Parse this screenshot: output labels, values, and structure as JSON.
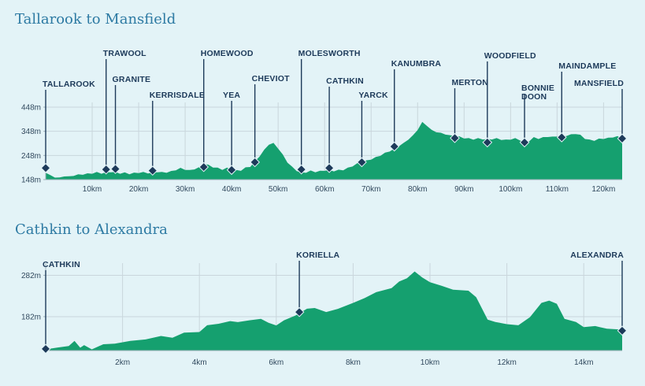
{
  "colors": {
    "background": "#e3f3f7",
    "area": "#15a06f",
    "title": "#2d7aa3",
    "label": "#1d3a5a"
  },
  "chart_data": [
    {
      "type": "area",
      "title": "Tallarook to Mansfield",
      "xlabel": "",
      "ylabel": "",
      "x_unit": "km",
      "y_unit": "m",
      "xlim": [
        0,
        124
      ],
      "ylim": [
        148,
        448
      ],
      "x_ticks": [
        10,
        20,
        30,
        40,
        50,
        60,
        70,
        80,
        90,
        100,
        110,
        120
      ],
      "x_tick_labels": [
        "10km",
        "20km",
        "30km",
        "40km",
        "50km",
        "60km",
        "70km",
        "80km",
        "90km",
        "100km",
        "110km",
        "120km"
      ],
      "y_ticks": [
        148,
        248,
        348,
        448
      ],
      "y_tick_labels": [
        "148m",
        "248m",
        "348m",
        "448m"
      ],
      "grid": true,
      "elevation": {
        "x": [
          0,
          1,
          2,
          3,
          4,
          5,
          6,
          7,
          8,
          9,
          10,
          11,
          12,
          13,
          14,
          15,
          16,
          17,
          18,
          19,
          20,
          21,
          22,
          23,
          24,
          25,
          26,
          27,
          28,
          29,
          30,
          31,
          32,
          33,
          34,
          35,
          36,
          37,
          38,
          39,
          40,
          41,
          42,
          43,
          44,
          45,
          46,
          47,
          48,
          49,
          50,
          51,
          52,
          53,
          54,
          55,
          56,
          57,
          58,
          59,
          60,
          61,
          62,
          63,
          64,
          65,
          66,
          67,
          68,
          69,
          70,
          71,
          72,
          73,
          74,
          75,
          76,
          77,
          78,
          79,
          80,
          81,
          82,
          83,
          84,
          85,
          86,
          87,
          88,
          89,
          90,
          91,
          92,
          93,
          94,
          95,
          96,
          97,
          98,
          99,
          100,
          101,
          102,
          103,
          104,
          105,
          106,
          107,
          108,
          109,
          110,
          111,
          112,
          113,
          114,
          115,
          116,
          117,
          118,
          119,
          120,
          121,
          122,
          123,
          124
        ],
        "y": [
          178,
          165,
          158,
          155,
          163,
          160,
          165,
          168,
          170,
          172,
          174,
          178,
          174,
          177,
          180,
          178,
          174,
          176,
          172,
          175,
          177,
          178,
          175,
          176,
          180,
          178,
          178,
          182,
          188,
          195,
          190,
          186,
          192,
          198,
          214,
          208,
          200,
          196,
          190,
          196,
          190,
          186,
          186,
          197,
          202,
          222,
          245,
          270,
          294,
          298,
          278,
          250,
          220,
          200,
          185,
          176,
          178,
          184,
          180,
          183,
          186,
          186,
          184,
          187,
          188,
          196,
          204,
          214,
          220,
          226,
          232,
          240,
          248,
          258,
          266,
          275,
          288,
          298,
          315,
          330,
          355,
          385,
          372,
          352,
          346,
          340,
          336,
          330,
          330,
          325,
          320,
          318,
          315,
          318,
          316,
          314,
          316,
          318,
          314,
          312,
          315,
          318,
          312,
          300,
          308,
          322,
          318,
          322,
          326,
          324,
          328,
          326,
          330,
          334,
          338,
          332,
          318,
          312,
          310,
          316,
          318,
          320,
          324,
          326,
          318
        ],
        "min_y": 148
      },
      "locations": [
        {
          "name": "TALLAROOK",
          "km": 0,
          "elev": 196
        },
        {
          "name": "TRAWOOL",
          "km": 13,
          "elev": 190
        },
        {
          "name": "GRANITE",
          "km": 15,
          "elev": 192
        },
        {
          "name": "KERRISDALE",
          "km": 23,
          "elev": 185
        },
        {
          "name": "HOMEWOOD",
          "km": 34,
          "elev": 200
        },
        {
          "name": "YEA",
          "km": 40,
          "elev": 188
        },
        {
          "name": "CHEVIOT",
          "km": 45,
          "elev": 220
        },
        {
          "name": "MOLESWORTH",
          "km": 55,
          "elev": 190
        },
        {
          "name": "CATHKIN",
          "km": 61,
          "elev": 196
        },
        {
          "name": "YARCK",
          "km": 68,
          "elev": 220
        },
        {
          "name": "KANUMBRA",
          "km": 75,
          "elev": 285
        },
        {
          "name": "MERTON",
          "km": 88,
          "elev": 320
        },
        {
          "name": "WOODFIELD",
          "km": 95,
          "elev": 302
        },
        {
          "name": "BONNIE DOON",
          "km": 103,
          "elev": 302
        },
        {
          "name": "MAINDAMPLE",
          "km": 111,
          "elev": 323
        },
        {
          "name": "MANSFIELD",
          "km": 124,
          "elev": 318
        }
      ]
    },
    {
      "type": "area",
      "title": "Cathkin to Alexandra",
      "xlabel": "",
      "ylabel": "",
      "x_unit": "km",
      "y_unit": "m",
      "xlim": [
        0,
        15
      ],
      "ylim": [
        100,
        300
      ],
      "x_ticks": [
        2,
        4,
        6,
        8,
        10,
        12,
        14
      ],
      "x_tick_labels": [
        "2km",
        "4km",
        "6km",
        "8km",
        "10km",
        "12km",
        "14km"
      ],
      "y_ticks": [
        182,
        282
      ],
      "y_tick_labels": [
        "182m",
        "282m"
      ],
      "grid": true,
      "elevation": {
        "x": [
          0,
          0.3,
          0.6,
          0.75,
          0.9,
          1.0,
          1.2,
          1.5,
          1.8,
          2.2,
          2.6,
          3.0,
          3.3,
          3.6,
          4.0,
          4.2,
          4.5,
          4.8,
          5.0,
          5.3,
          5.6,
          5.8,
          6.0,
          6.2,
          6.5,
          6.8,
          7.0,
          7.3,
          7.6,
          8.0,
          8.3,
          8.6,
          9.0,
          9.2,
          9.4,
          9.6,
          9.8,
          10.0,
          10.3,
          10.6,
          11.0,
          11.2,
          11.5,
          11.7,
          12.0,
          12.3,
          12.6,
          12.9,
          13.1,
          13.3,
          13.5,
          13.8,
          14.0,
          14.3,
          14.6,
          14.9,
          15.0
        ],
        "y": [
          104,
          106,
          112,
          122,
          108,
          112,
          104,
          114,
          118,
          122,
          128,
          134,
          132,
          142,
          146,
          160,
          166,
          170,
          170,
          172,
          178,
          166,
          162,
          172,
          186,
          200,
          204,
          192,
          202,
          214,
          228,
          240,
          252,
          266,
          276,
          290,
          278,
          264,
          258,
          246,
          246,
          228,
          176,
          168,
          165,
          160,
          182,
          214,
          222,
          212,
          178,
          168,
          158,
          158,
          154,
          150,
          148
        ]
      },
      "locations": [
        {
          "name": "CATHKIN",
          "km": 0,
          "elev": 104
        },
        {
          "name": "KORIELLA",
          "km": 6.6,
          "elev": 193
        },
        {
          "name": "ALEXANDRA",
          "km": 15,
          "elev": 148
        }
      ]
    }
  ]
}
